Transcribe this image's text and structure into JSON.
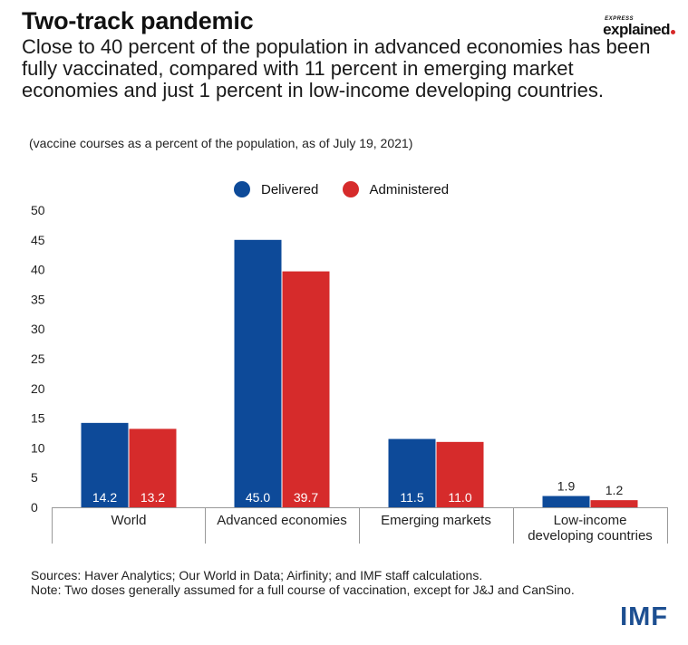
{
  "header": {
    "title": "Two-track pandemic",
    "subtitle": "Close to 40 percent of the population in advanced economies has been fully vaccinated, compared with 11 percent in emerging market economies and just 1 percent in low-income developing countries.",
    "note": "(vaccine courses as a percent of the population, as of July 19, 2021)"
  },
  "brand": {
    "small": "EXPRESS",
    "big": "explained"
  },
  "legend": {
    "delivered": "Delivered",
    "administered": "Administered"
  },
  "colors": {
    "delivered": "#0d4a99",
    "administered": "#d62b2b",
    "axis": "#999999"
  },
  "chart_data": {
    "type": "bar",
    "categories": [
      [
        "World"
      ],
      [
        "Advanced economies"
      ],
      [
        "Emerging markets"
      ],
      [
        "Low-income",
        "developing countries"
      ]
    ],
    "series": [
      {
        "name": "Delivered",
        "values": [
          14.2,
          45.0,
          11.5,
          1.9
        ],
        "labels": [
          "14.2",
          "45.0",
          "11.5",
          "1.9"
        ]
      },
      {
        "name": "Administered",
        "values": [
          13.2,
          39.7,
          11.0,
          1.2
        ],
        "labels": [
          "13.2",
          "39.7",
          "11.0",
          "1.2"
        ]
      }
    ],
    "ylim": [
      0,
      50
    ],
    "yticks": [
      0,
      5,
      10,
      15,
      20,
      25,
      30,
      35,
      40,
      45,
      50
    ],
    "grid": false,
    "legend_position": "top-center"
  },
  "footer": {
    "sources": "Sources: Haver Analytics; Our World in Data; Airfinity; and IMF staff calculations.",
    "note": "Note: Two doses generally assumed for a full course of vaccination, except for J&J and CanSino.",
    "logo": "IMF"
  }
}
